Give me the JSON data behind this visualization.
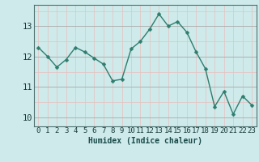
{
  "x": [
    0,
    1,
    2,
    3,
    4,
    5,
    6,
    7,
    8,
    9,
    10,
    11,
    12,
    13,
    14,
    15,
    16,
    17,
    18,
    19,
    20,
    21,
    22,
    23
  ],
  "y": [
    12.3,
    12.0,
    11.65,
    11.9,
    12.3,
    12.15,
    11.95,
    11.75,
    11.2,
    11.25,
    12.25,
    12.5,
    12.9,
    13.4,
    13.0,
    13.15,
    12.8,
    12.15,
    11.6,
    10.35,
    10.85,
    10.1,
    10.7,
    10.4
  ],
  "line_color": "#2e7d6e",
  "marker": "D",
  "marker_size": 2.5,
  "bg_color": "#ceeaea",
  "grid_color_major": "#aaaaaa",
  "grid_color_minor": "#e8c0c0",
  "ylim": [
    9.7,
    13.7
  ],
  "yticks": [
    10,
    11,
    12,
    13
  ],
  "xlabel": "Humidex (Indice chaleur)",
  "xlabel_fontsize": 7,
  "tick_fontsize": 6.5,
  "spine_color": "#507070"
}
